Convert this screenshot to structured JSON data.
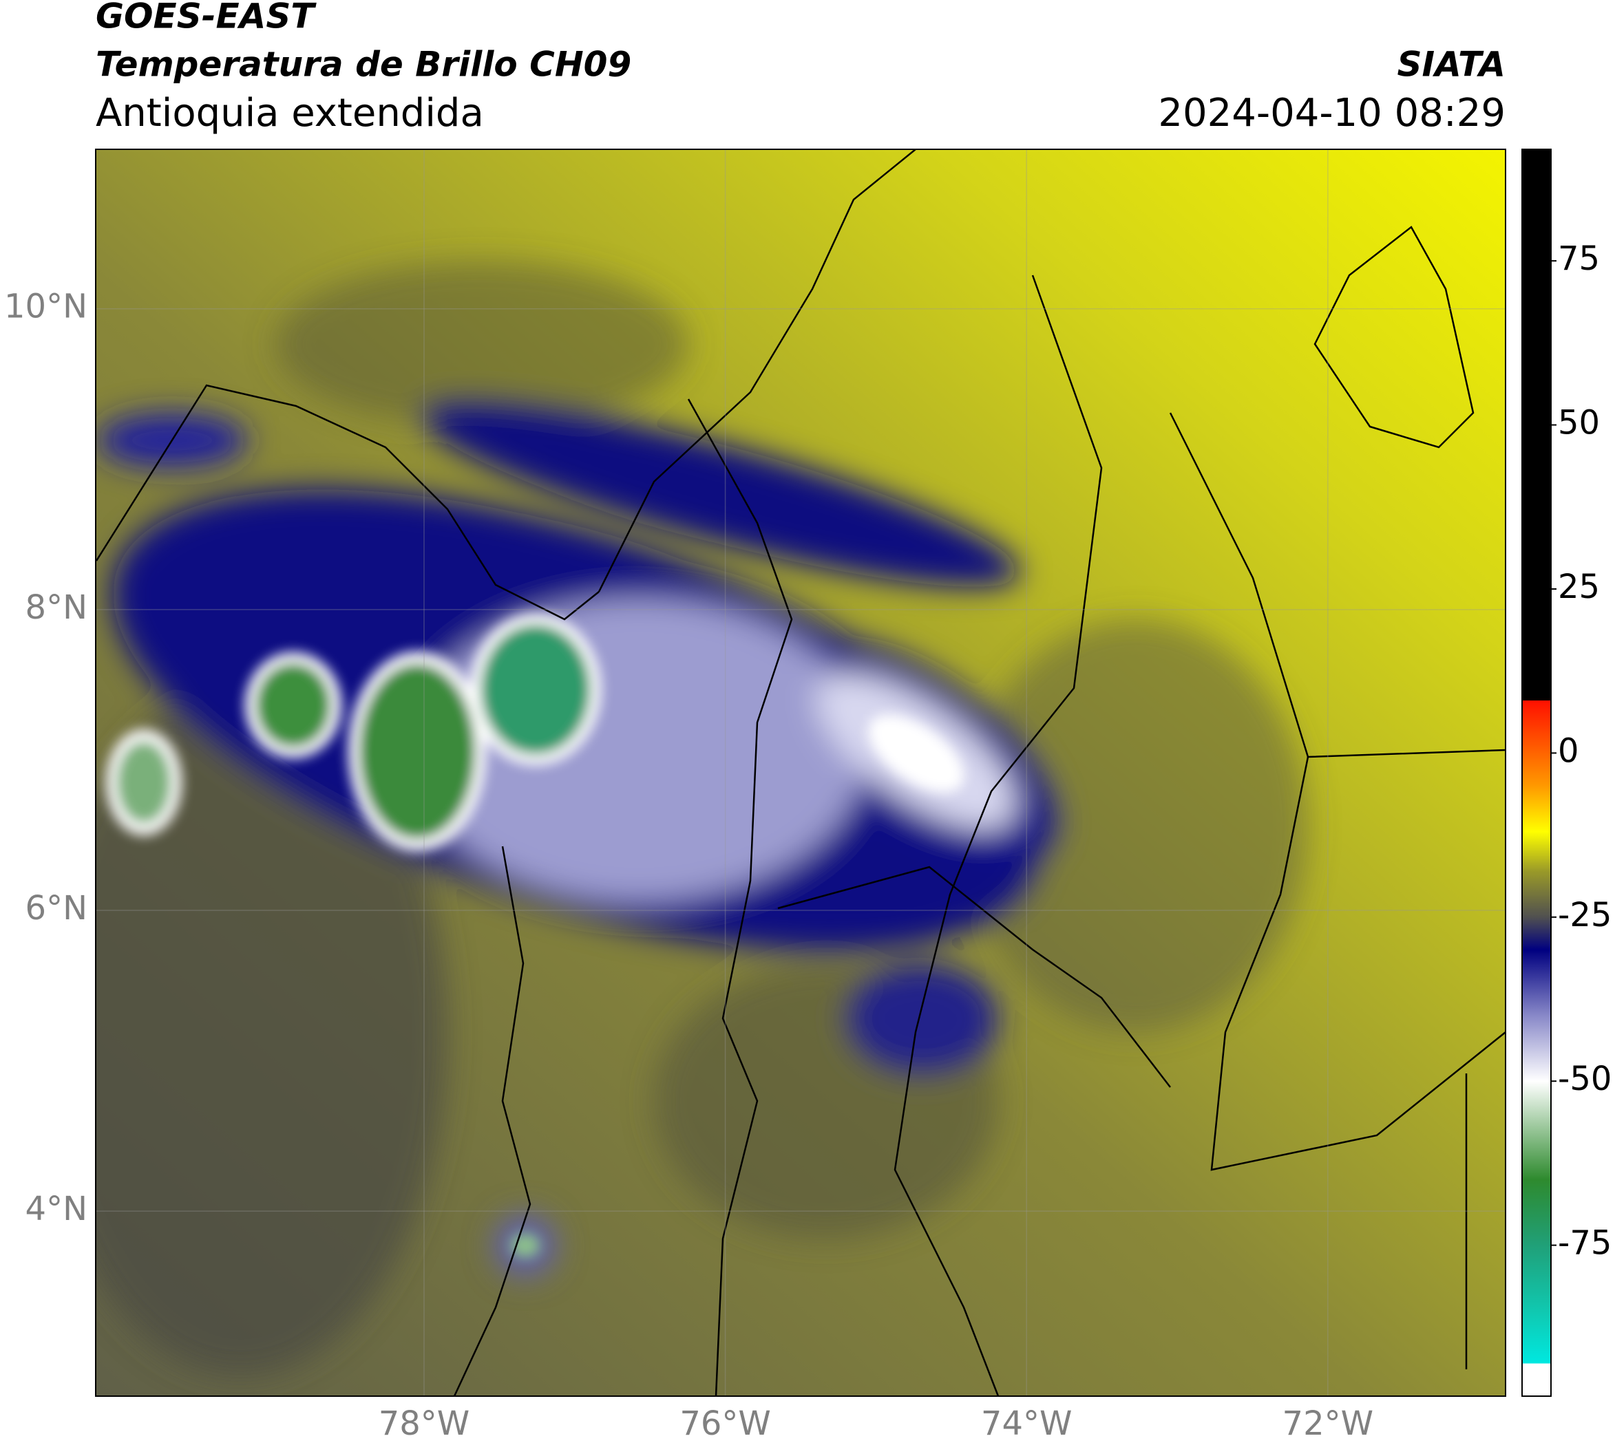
{
  "header": {
    "satellite": "GOES-EAST",
    "product": "Temperatura de Brillo CH09",
    "region": "Antioquia extendida",
    "agency": "SIATA",
    "datetime": "2024-04-10 08:29"
  },
  "chart_data": {
    "type": "map",
    "xlim": [
      -80.18,
      -70.82
    ],
    "ylim": [
      2.77,
      11.06
    ],
    "xticks": [
      {
        "value": -78,
        "label": "78°W"
      },
      {
        "value": -76,
        "label": "76°W"
      },
      {
        "value": -74,
        "label": "74°W"
      },
      {
        "value": -72,
        "label": "72°W"
      }
    ],
    "yticks": [
      {
        "value": 4,
        "label": "4°N"
      },
      {
        "value": 6,
        "label": "6°N"
      },
      {
        "value": 8,
        "label": "8°N"
      },
      {
        "value": 10,
        "label": "10°N"
      }
    ],
    "grid": true,
    "colorbar": {
      "lim": [
        -98,
        92
      ],
      "ticks": [
        75,
        50,
        25,
        0,
        -25,
        -50,
        -75
      ],
      "colormap": [
        {
          "value": -98,
          "color": "#ffffff"
        },
        {
          "value": -93,
          "color": "#ffffff"
        },
        {
          "value": -93,
          "color": "#00e8e0"
        },
        {
          "value": -85,
          "color": "#10c8b0"
        },
        {
          "value": -75,
          "color": "#20a078"
        },
        {
          "value": -65,
          "color": "#2e8a2e"
        },
        {
          "value": -57,
          "color": "#9cc89c"
        },
        {
          "value": -50,
          "color": "#ffffff"
        },
        {
          "value": -40,
          "color": "#8888c8"
        },
        {
          "value": -30,
          "color": "#000080"
        },
        {
          "value": -25,
          "color": "#505050"
        },
        {
          "value": -18,
          "color": "#9a9a28"
        },
        {
          "value": -12,
          "color": "#ffff00"
        },
        {
          "value": -5,
          "color": "#ff9900"
        },
        {
          "value": 8,
          "color": "#ff1000"
        },
        {
          "value": 8,
          "color": "#000000"
        },
        {
          "value": 92,
          "color": "#000000"
        }
      ]
    }
  }
}
